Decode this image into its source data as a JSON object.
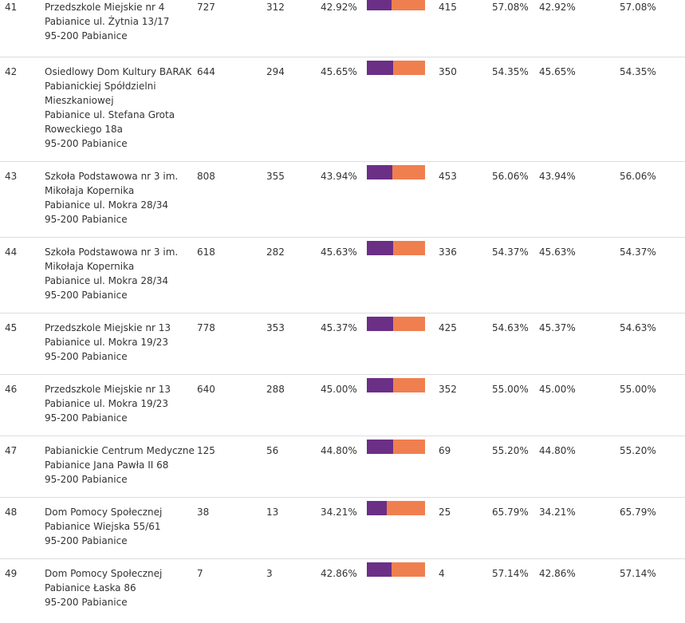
{
  "colors": {
    "option_a": "#6b2f86",
    "option_b": "#f07f4f"
  },
  "rows": [
    {
      "no": "41",
      "name_lines": [
        "Przedszkole Miejskie nr 4",
        "Pabianice ul. Żytnia 13/17",
        "95-200 Pabianice"
      ],
      "voters": "727",
      "count_a": "312",
      "pct_a": "42.92%",
      "share_a": 0.4292,
      "count_b": "415",
      "pct_b": "57.08%",
      "pct_a2": "42.92%",
      "pct_b2": "57.08%"
    },
    {
      "no": "42",
      "name_lines": [
        "Osiedlowy Dom Kultury BARAK",
        "Pabianickiej Spółdzielni",
        "Mieszkaniowej",
        "Pabianice ul. Stefana Grota",
        "Roweckiego 18a",
        "95-200 Pabianice"
      ],
      "voters": "644",
      "count_a": "294",
      "pct_a": "45.65%",
      "share_a": 0.4565,
      "count_b": "350",
      "pct_b": "54.35%",
      "pct_a2": "45.65%",
      "pct_b2": "54.35%"
    },
    {
      "no": "43",
      "name_lines": [
        "Szkoła Podstawowa nr 3 im.",
        "Mikołaja Kopernika",
        "Pabianice ul. Mokra 28/34",
        "95-200 Pabianice"
      ],
      "voters": "808",
      "count_a": "355",
      "pct_a": "43.94%",
      "share_a": 0.4394,
      "count_b": "453",
      "pct_b": "56.06%",
      "pct_a2": "43.94%",
      "pct_b2": "56.06%"
    },
    {
      "no": "44",
      "name_lines": [
        "Szkoła Podstawowa nr 3 im.",
        "Mikołaja Kopernika",
        "Pabianice ul. Mokra 28/34",
        "95-200 Pabianice"
      ],
      "voters": "618",
      "count_a": "282",
      "pct_a": "45.63%",
      "share_a": 0.4563,
      "count_b": "336",
      "pct_b": "54.37%",
      "pct_a2": "45.63%",
      "pct_b2": "54.37%"
    },
    {
      "no": "45",
      "name_lines": [
        "Przedszkole Miejskie nr 13",
        "Pabianice ul. Mokra 19/23",
        "95-200 Pabianice"
      ],
      "voters": "778",
      "count_a": "353",
      "pct_a": "45.37%",
      "share_a": 0.4537,
      "count_b": "425",
      "pct_b": "54.63%",
      "pct_a2": "45.37%",
      "pct_b2": "54.63%"
    },
    {
      "no": "46",
      "name_lines": [
        "Przedszkole Miejskie nr 13",
        "Pabianice ul. Mokra 19/23",
        "95-200 Pabianice"
      ],
      "voters": "640",
      "count_a": "288",
      "pct_a": "45.00%",
      "share_a": 0.45,
      "count_b": "352",
      "pct_b": "55.00%",
      "pct_a2": "45.00%",
      "pct_b2": "55.00%"
    },
    {
      "no": "47",
      "name_lines": [
        "Pabianickie Centrum Medyczne",
        "Pabianice Jana Pawła II 68",
        "95-200 Pabianice"
      ],
      "voters": "125",
      "count_a": "56",
      "pct_a": "44.80%",
      "share_a": 0.448,
      "count_b": "69",
      "pct_b": "55.20%",
      "pct_a2": "44.80%",
      "pct_b2": "55.20%"
    },
    {
      "no": "48",
      "name_lines": [
        "Dom Pomocy Społecznej",
        "Pabianice Wiejska 55/61",
        "95-200 Pabianice"
      ],
      "voters": "38",
      "count_a": "13",
      "pct_a": "34.21%",
      "share_a": 0.3421,
      "count_b": "25",
      "pct_b": "65.79%",
      "pct_a2": "34.21%",
      "pct_b2": "65.79%"
    },
    {
      "no": "49",
      "name_lines": [
        "Dom Pomocy Społecznej",
        "Pabianice Łaska 86",
        "95-200 Pabianice"
      ],
      "voters": "7",
      "count_a": "3",
      "pct_a": "42.86%",
      "share_a": 0.4286,
      "count_b": "4",
      "pct_b": "57.14%",
      "pct_a2": "42.86%",
      "pct_b2": "57.14%"
    }
  ]
}
